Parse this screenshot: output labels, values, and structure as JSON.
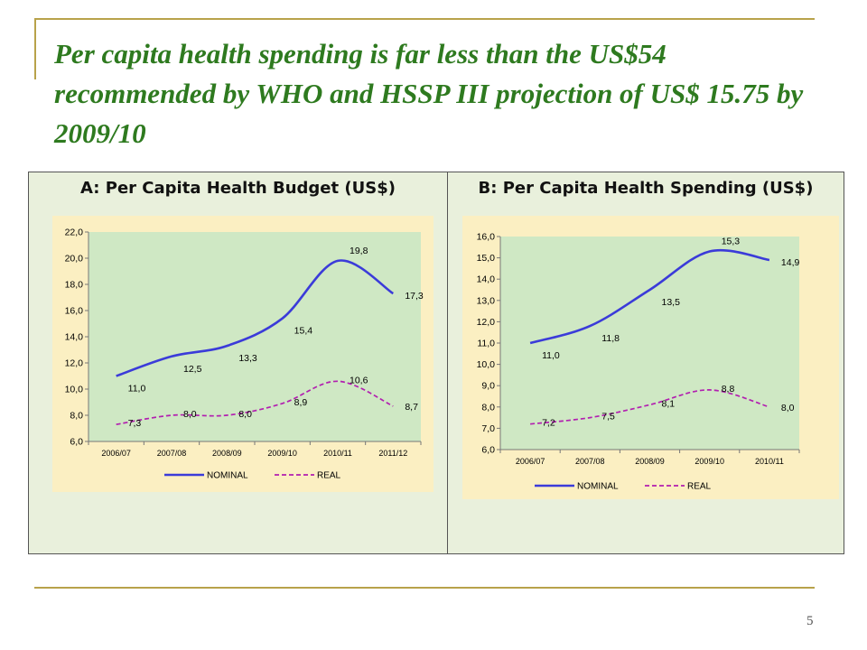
{
  "slide": {
    "title": "Per capita health spending is far less than the US$54 recommended by WHO and HSSP III projection of US$ 15.75 by 2009/10",
    "page_number": "5"
  },
  "panels": {
    "a_title": "A: Per Capita Health Budget (US$)",
    "b_title": "B: Per Capita Health Spending (US$)"
  },
  "colors": {
    "nominal": "#3b3bd9",
    "real": "#b21fb0",
    "plot_bg": "#cfe8c4",
    "chart_bg": "#fbefc2",
    "title_green": "#2e7a1f"
  },
  "chart_data": [
    {
      "type": "line",
      "title": "A: Per Capita Health Budget (US$)",
      "categories": [
        "2006/07",
        "2007/08",
        "2008/09",
        "2009/10",
        "2010/11",
        "2011/12"
      ],
      "series": [
        {
          "name": "NOMINAL",
          "values": [
            11.0,
            12.5,
            13.3,
            15.4,
            19.8,
            17.3
          ],
          "labels": [
            "11,0",
            "12,5",
            "13,3",
            "15,4",
            "19,8",
            "17,3"
          ],
          "style": "solid"
        },
        {
          "name": "REAL",
          "values": [
            7.3,
            8.0,
            8.0,
            8.9,
            10.6,
            8.7
          ],
          "labels": [
            "7,3",
            "8,0",
            "8,0",
            "8,9",
            "10,6",
            "8,7"
          ],
          "style": "dashed"
        }
      ],
      "ylim": [
        6.0,
        22.0
      ],
      "yticks": [
        "6,0",
        "8,0",
        "10,0",
        "12,0",
        "14,0",
        "16,0",
        "18,0",
        "20,0",
        "22,0"
      ],
      "grid": false,
      "legend": "bottom"
    },
    {
      "type": "line",
      "title": "B: Per Capita Health Spending (US$)",
      "categories": [
        "2006/07",
        "2007/08",
        "2008/09",
        "2009/10",
        "2010/11"
      ],
      "series": [
        {
          "name": "NOMINAL",
          "values": [
            11.0,
            11.8,
            13.5,
            15.3,
            14.9
          ],
          "labels": [
            "11,0",
            "11,8",
            "13,5",
            "15,3",
            "14,9"
          ],
          "style": "solid"
        },
        {
          "name": "REAL",
          "values": [
            7.2,
            7.5,
            8.1,
            8.8,
            8.0
          ],
          "labels": [
            "7,2",
            "7,5",
            "8,1",
            "8,8",
            "8,0"
          ],
          "style": "dashed"
        }
      ],
      "ylim": [
        6.0,
        16.0
      ],
      "yticks": [
        "6,0",
        "7,0",
        "8,0",
        "9,0",
        "10,0",
        "11,0",
        "12,0",
        "13,0",
        "14,0",
        "15,0",
        "16,0"
      ],
      "grid": false,
      "legend": "bottom"
    }
  ]
}
